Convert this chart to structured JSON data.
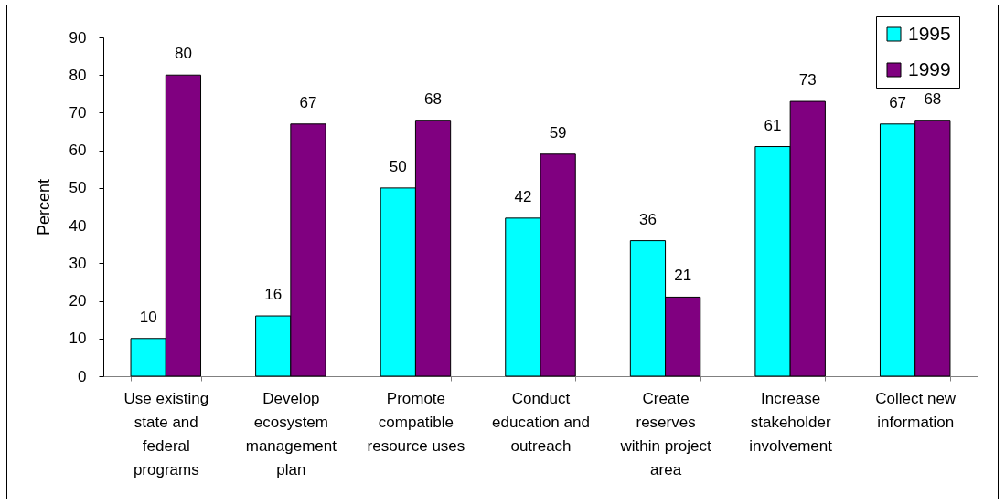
{
  "chart_data": {
    "type": "bar",
    "ylabel": "Percent",
    "categories": [
      "Use existing state and federal programs",
      "Develop ecosystem management plan",
      "Promote compatible resource uses",
      "Conduct education and outreach",
      "Create reserves within project area",
      "Increase stakeholder involvement",
      "Collect new information"
    ],
    "series": [
      {
        "name": "1995",
        "color": "#00ffff",
        "values": [
          10,
          16,
          50,
          42,
          36,
          61,
          67
        ]
      },
      {
        "name": "1999",
        "color": "#800080",
        "values": [
          80,
          67,
          68,
          59,
          21,
          73,
          68
        ]
      }
    ],
    "ylim": [
      0,
      90
    ],
    "yticks": [
      0,
      10,
      20,
      30,
      40,
      50,
      60,
      70,
      80,
      90
    ],
    "legend": "top right",
    "data_labels": true
  }
}
